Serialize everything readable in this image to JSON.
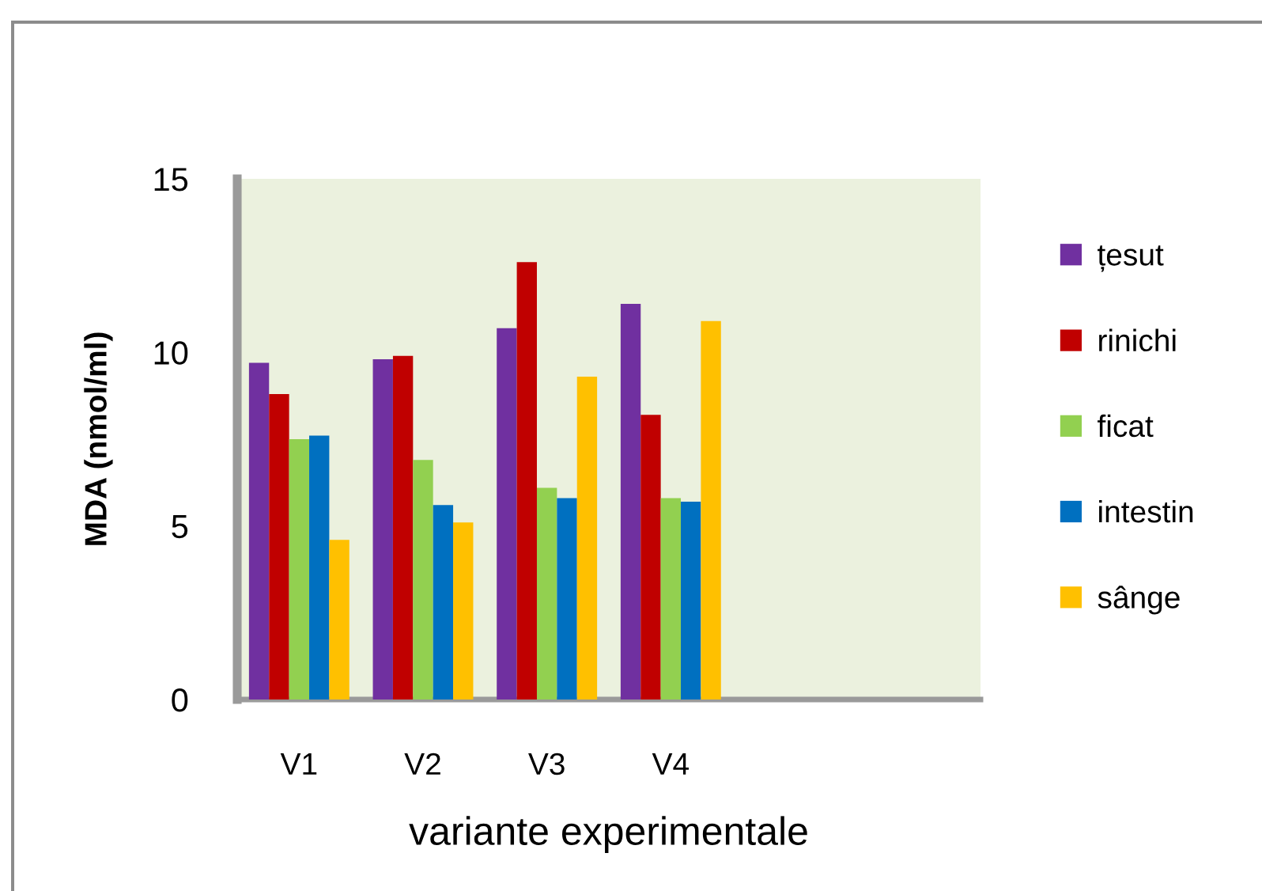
{
  "chart_data": {
    "type": "bar",
    "xlabel": "variante experimentale",
    "ylabel": "MDA (nmol/ml)",
    "categories": [
      "V1",
      "V2",
      "V3",
      "V4",
      null,
      null
    ],
    "series": [
      {
        "name": "țesut",
        "color": "#7030a0",
        "values": [
          9.7,
          9.8,
          10.7,
          11.4,
          null,
          null
        ]
      },
      {
        "name": "rinichi",
        "color": "#c00000",
        "values": [
          8.8,
          9.9,
          12.6,
          8.2,
          null,
          null
        ]
      },
      {
        "name": "ficat",
        "color": "#92d050",
        "values": [
          7.5,
          6.9,
          6.1,
          5.8,
          null,
          null
        ]
      },
      {
        "name": "intestin",
        "color": "#0070c0",
        "values": [
          7.6,
          5.6,
          5.8,
          5.7,
          null,
          null
        ]
      },
      {
        "name": "sânge",
        "color": "#ffc000",
        "values": [
          4.6,
          5.1,
          9.3,
          10.9,
          null,
          null
        ]
      }
    ],
    "ylim": [
      0,
      15
    ],
    "yticks": [
      0,
      5,
      10,
      15
    ],
    "legend": "right",
    "grid": false
  }
}
